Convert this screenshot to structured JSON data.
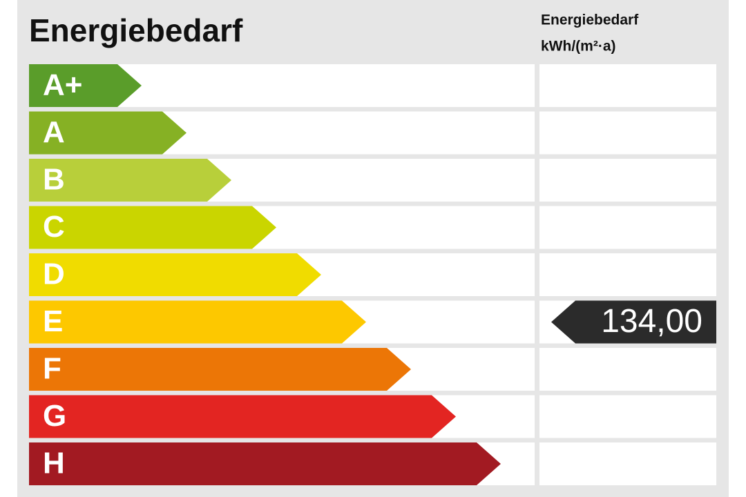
{
  "title": "Energiebedarf",
  "column_header": [
    "Energiebedarf",
    "kWh/(m²·a)"
  ],
  "classes": [
    {
      "label": "A+",
      "color": "#5a9d2a"
    },
    {
      "label": "A",
      "color": "#86b124"
    },
    {
      "label": "B",
      "color": "#b8cf3a"
    },
    {
      "label": "C",
      "color": "#cad500"
    },
    {
      "label": "D",
      "color": "#f0dc00"
    },
    {
      "label": "E",
      "color": "#fdc800"
    },
    {
      "label": "F",
      "color": "#ec7606"
    },
    {
      "label": "G",
      "color": "#e32522"
    },
    {
      "label": "H",
      "color": "#a21a22"
    }
  ],
  "rating": {
    "class": "E",
    "value": "134,00"
  }
}
